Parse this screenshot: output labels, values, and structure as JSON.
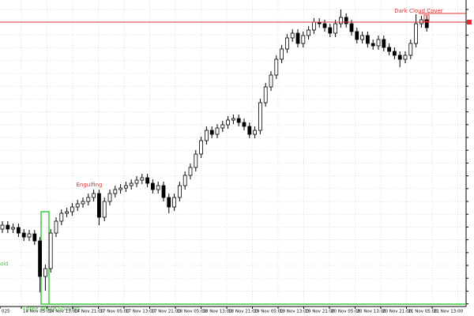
{
  "chart_data": {
    "type": "candlestick",
    "bull_color": "#ffffff",
    "bear_color": "#000000",
    "wick_color": "#000000",
    "ylim": [
      0,
      390
    ],
    "grid": true,
    "ohlc": [
      [
        100,
        110,
        95,
        105
      ],
      [
        105,
        110,
        95,
        100
      ],
      [
        100,
        107,
        95,
        102
      ],
      [
        102,
        107,
        90,
        95
      ],
      [
        95,
        100,
        85,
        90
      ],
      [
        90,
        99,
        85,
        94
      ],
      [
        94,
        99,
        80,
        85
      ],
      [
        85,
        90,
        20,
        40
      ],
      [
        40,
        55,
        22,
        50
      ],
      [
        50,
        100,
        45,
        95
      ],
      [
        95,
        115,
        90,
        110
      ],
      [
        110,
        125,
        105,
        120
      ],
      [
        120,
        127,
        115,
        122
      ],
      [
        122,
        133,
        117,
        128
      ],
      [
        128,
        137,
        123,
        132
      ],
      [
        132,
        140,
        127,
        135
      ],
      [
        135,
        145,
        130,
        140
      ],
      [
        140,
        150,
        135,
        145
      ],
      [
        145,
        150,
        105,
        115
      ],
      [
        115,
        140,
        110,
        135
      ],
      [
        135,
        150,
        130,
        145
      ],
      [
        145,
        155,
        140,
        150
      ],
      [
        150,
        157,
        145,
        152
      ],
      [
        152,
        160,
        147,
        155
      ],
      [
        155,
        163,
        150,
        158
      ],
      [
        158,
        167,
        153,
        162
      ],
      [
        162,
        170,
        157,
        165
      ],
      [
        165,
        170,
        153,
        158
      ],
      [
        158,
        163,
        145,
        150
      ],
      [
        150,
        160,
        145,
        155
      ],
      [
        155,
        160,
        135,
        140
      ],
      [
        140,
        145,
        120,
        128
      ],
      [
        128,
        145,
        123,
        140
      ],
      [
        140,
        160,
        135,
        155
      ],
      [
        155,
        173,
        150,
        168
      ],
      [
        168,
        183,
        163,
        178
      ],
      [
        178,
        200,
        173,
        195
      ],
      [
        195,
        217,
        190,
        212
      ],
      [
        212,
        230,
        207,
        225
      ],
      [
        225,
        230,
        215,
        220
      ],
      [
        220,
        233,
        215,
        228
      ],
      [
        228,
        237,
        223,
        232
      ],
      [
        232,
        243,
        227,
        238
      ],
      [
        238,
        245,
        233,
        240
      ],
      [
        240,
        245,
        230,
        235
      ],
      [
        235,
        240,
        225,
        230
      ],
      [
        230,
        235,
        215,
        220
      ],
      [
        220,
        230,
        215,
        225
      ],
      [
        225,
        265,
        220,
        260
      ],
      [
        260,
        285,
        255,
        280
      ],
      [
        280,
        300,
        275,
        295
      ],
      [
        295,
        320,
        290,
        315
      ],
      [
        315,
        333,
        310,
        328
      ],
      [
        328,
        347,
        323,
        342
      ],
      [
        342,
        353,
        337,
        348
      ],
      [
        348,
        353,
        330,
        335
      ],
      [
        335,
        350,
        330,
        345
      ],
      [
        345,
        357,
        340,
        352
      ],
      [
        352,
        367,
        347,
        362
      ],
      [
        362,
        367,
        355,
        360
      ],
      [
        360,
        365,
        350,
        355
      ],
      [
        355,
        360,
        343,
        348
      ],
      [
        348,
        365,
        343,
        360
      ],
      [
        360,
        378,
        355,
        368
      ],
      [
        368,
        373,
        355,
        360
      ],
      [
        360,
        365,
        345,
        350
      ],
      [
        350,
        355,
        335,
        340
      ],
      [
        340,
        350,
        335,
        345
      ],
      [
        345,
        350,
        330,
        335
      ],
      [
        335,
        340,
        327,
        332
      ],
      [
        332,
        345,
        327,
        340
      ],
      [
        340,
        345,
        325,
        330
      ],
      [
        330,
        335,
        320,
        325
      ],
      [
        325,
        330,
        315,
        320
      ],
      [
        320,
        325,
        305,
        315
      ],
      [
        315,
        325,
        310,
        320
      ],
      [
        320,
        340,
        315,
        335
      ],
      [
        335,
        372,
        330,
        360
      ],
      [
        360,
        370,
        355,
        365
      ],
      [
        365,
        370,
        350,
        355
      ]
    ],
    "price_line": {
      "value": 362,
      "color": "#e03030"
    },
    "dark_cloud_level": {
      "value": 373,
      "color": "#e03030"
    },
    "soldiers_box": {
      "low": 5,
      "high": 122,
      "color": "#3dcc3d"
    },
    "annotations": [
      {
        "text": "Engulfing",
        "color": "#e03030"
      },
      {
        "text": "Dark Cloud Cover",
        "color": "#e03030"
      },
      {
        "text": "old",
        "color": "#3dcc3d"
      },
      {
        "text": "Three White Soldiers",
        "color": "#3dcc3d"
      }
    ],
    "xlabels": [
      "025",
      "14 Nov 05:00",
      "14 Nov 13:00",
      "14 Nov 21:00",
      "17 Nov 05:00",
      "17 Nov 13:00",
      "17 Nov 21:00",
      "18 Nov 05:00",
      "18 Nov 13:00",
      "18 Nov 21:00",
      "19 Nov 05:00",
      "19 Nov 13:00",
      "19 Nov 21:00",
      "20 Nov 05:00",
      "20 Nov 13:00",
      "20 Nov 21:00",
      "21 Nov 05:00",
      "21 Nov 13:00"
    ]
  }
}
